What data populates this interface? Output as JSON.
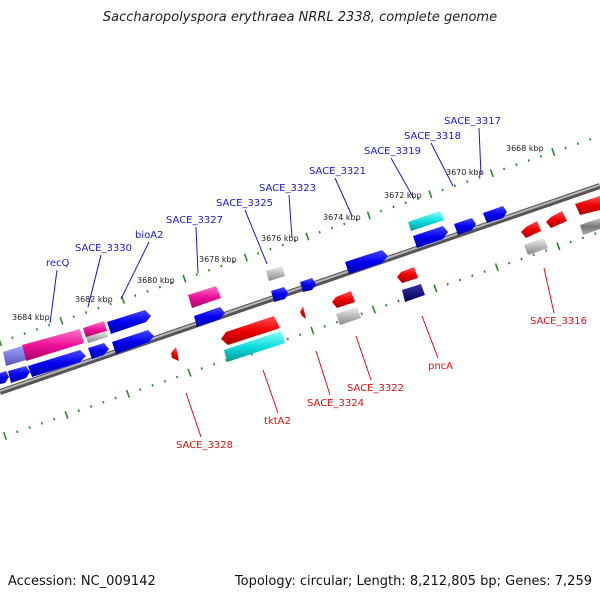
{
  "title": "Saccharopolyspora erythraea NRRL 2338, complete genome",
  "footer": {
    "accession": "Accession: NC_009142",
    "topology": "Topology: circular; Length: 8,212,805 bp; Genes: 7,259"
  },
  "ruler": {
    "ticks": [
      {
        "label": "3668 kbp",
        "name": "tick-3668"
      },
      {
        "label": "3670 kbp",
        "name": "tick-3670"
      },
      {
        "label": "3672 kbp",
        "name": "tick-3672"
      },
      {
        "label": "3674 kbp",
        "name": "tick-3674"
      },
      {
        "label": "3676 kbp",
        "name": "tick-3676"
      },
      {
        "label": "3678 kbp",
        "name": "tick-3678"
      },
      {
        "label": "3680 kbp",
        "name": "tick-3680"
      },
      {
        "label": "3682 kbp",
        "name": "tick-3682"
      },
      {
        "label": "3684 kbp",
        "name": "tick-3684"
      }
    ]
  },
  "forward_genes": [
    {
      "label": "SACE_3317"
    },
    {
      "label": "SACE_3318"
    },
    {
      "label": "SACE_3319"
    },
    {
      "label": "SACE_3321"
    },
    {
      "label": "SACE_3323"
    },
    {
      "label": "SACE_3325"
    },
    {
      "label": "SACE_3327"
    },
    {
      "label": "bioA2"
    },
    {
      "label": "SACE_3330"
    },
    {
      "label": "recQ"
    }
  ],
  "reverse_genes": [
    {
      "label": "SACE_3316"
    },
    {
      "label": "pncA"
    },
    {
      "label": "SACE_3322"
    },
    {
      "label": "SACE_3324"
    },
    {
      "label": "tktA2"
    },
    {
      "label": "SACE_3328"
    }
  ],
  "colors": {
    "forward_label": "#1a1acc",
    "reverse_label": "#dd1111",
    "tick": "#2a8a2a",
    "backbone": "#888888"
  }
}
